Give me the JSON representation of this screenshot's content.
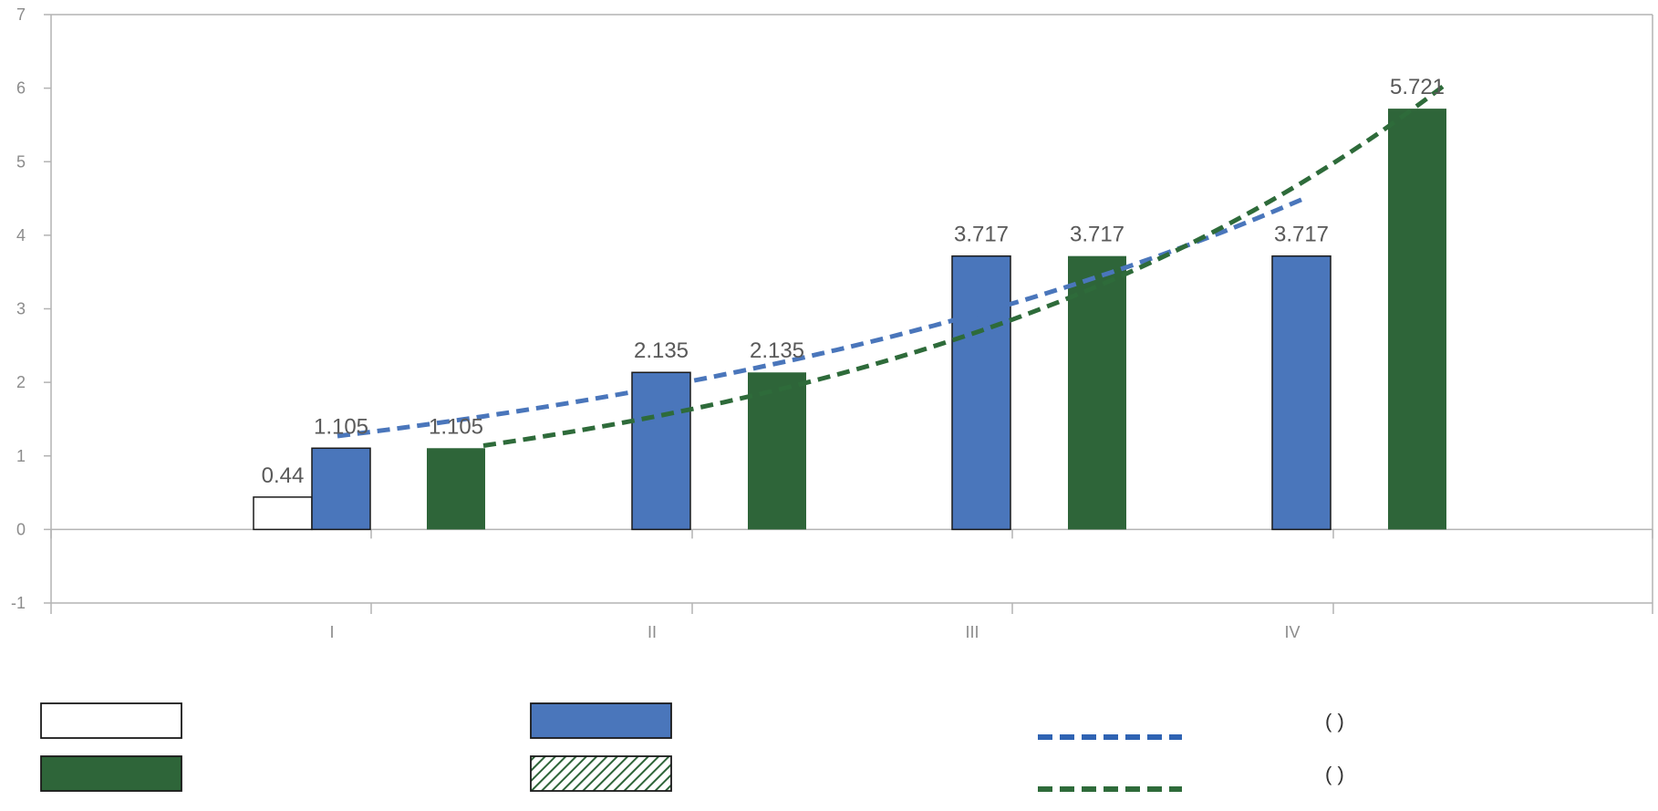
{
  "colors": {
    "blue": "#4a76bb",
    "blue_trend": "#2f63b3",
    "green": "#2e6539",
    "green_trend": "#2e6b3a",
    "outline": "#1a1a1a",
    "axis": "#b3b3b3"
  },
  "chart_data": {
    "type": "bar",
    "categories": [
      "I",
      "II",
      "III",
      "IV"
    ],
    "ylim": [
      -1,
      7
    ],
    "yticks": [
      "-1",
      "0",
      "1",
      "2",
      "3",
      "4",
      "5",
      "6",
      "7"
    ],
    "grid": false,
    "series": [
      {
        "key": "white",
        "fill": "white_outline",
        "values": [
          0.44,
          null,
          null,
          null
        ],
        "labels": [
          "0.44",
          "",
          "",
          ""
        ]
      },
      {
        "key": "blue",
        "fill": "blue",
        "values": [
          1.105,
          2.135,
          3.717,
          3.717
        ],
        "labels": [
          "1.105",
          "2.135",
          "3.717",
          "3.717"
        ]
      },
      {
        "key": "green",
        "fill": "green",
        "values": [
          1.105,
          2.135,
          3.717,
          5.721
        ],
        "labels": [
          "1.105",
          "2.135",
          "3.717",
          "5.721"
        ]
      }
    ],
    "trendlines": [
      {
        "key": "blue",
        "type": "exponential",
        "style": "dashed",
        "from_category": 0,
        "to_category": 3,
        "values_at_ends": [
          1.27,
          4.5
        ]
      },
      {
        "key": "green",
        "type": "exponential",
        "style": "dashed",
        "from_category": 0,
        "to_category": 3,
        "values_at_ends": [
          1.14,
          6.05
        ]
      }
    ],
    "legend": {
      "placement": "bottom",
      "items": [
        {
          "swatch": "white_outline_box",
          "text": ""
        },
        {
          "swatch": "blue_box",
          "text": ""
        },
        {
          "swatch": "blue_dashed_line",
          "text": "(      )"
        },
        {
          "swatch": "green_box",
          "text": ""
        },
        {
          "swatch": "green_hatched_box",
          "text": ""
        },
        {
          "swatch": "green_dashed_line",
          "text": "(          )"
        }
      ]
    }
  }
}
